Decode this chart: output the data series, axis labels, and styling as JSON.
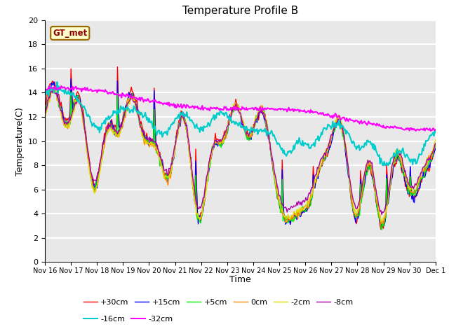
{
  "title": "Temperature Profile B",
  "xlabel": "Time",
  "ylabel": "Temperature(C)",
  "ylim": [
    0,
    20
  ],
  "background_color": "#e8e8e8",
  "grid_color": "#ffffff",
  "annotation_text": "GT_met",
  "x_tick_labels": [
    "Nov 16",
    "Nov 17",
    "Nov 18",
    "Nov 19",
    "Nov 20",
    "Nov 21",
    "Nov 22",
    "Nov 23",
    "Nov 24",
    "Nov 25",
    "Nov 26",
    "Nov 27",
    "Nov 28",
    "Nov 29",
    "Nov 30",
    "Dec 1"
  ],
  "series": [
    {
      "label": "+30cm",
      "color": "#ff0000",
      "lw": 1.0
    },
    {
      "label": "+15cm",
      "color": "#0000ff",
      "lw": 1.0
    },
    {
      "label": "+5cm",
      "color": "#00ee00",
      "lw": 1.0
    },
    {
      "label": "0cm",
      "color": "#ff8800",
      "lw": 1.0
    },
    {
      "label": "-2cm",
      "color": "#dddd00",
      "lw": 1.0
    },
    {
      "label": "-8cm",
      "color": "#aa00aa",
      "lw": 1.0
    },
    {
      "label": "-16cm",
      "color": "#00cccc",
      "lw": 1.5
    },
    {
      "label": "-32cm",
      "color": "#ff00ff",
      "lw": 1.5
    }
  ],
  "legend_row1": [
    "+30cm",
    "+15cm",
    "+5cm",
    "0cm",
    "-2cm",
    "-8cm"
  ],
  "legend_row2": [
    "-16cm",
    "-32cm"
  ]
}
